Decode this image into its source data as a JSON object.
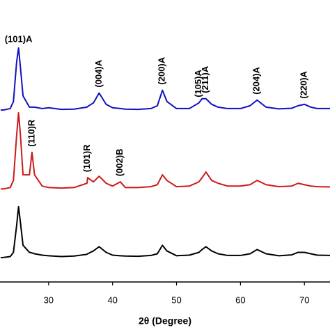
{
  "chart_data": {
    "type": "line",
    "x_label": "2θ (Degree)",
    "x": [
      22.5,
      23,
      24,
      24.5,
      25,
      25.3,
      25.6,
      26,
      27,
      27.4,
      27.8,
      29,
      30,
      32,
      34,
      36,
      36.1,
      37,
      37.9,
      39,
      40,
      41.2,
      42,
      44,
      46,
      47,
      47.8,
      48.5,
      50,
      52,
      53.5,
      54,
      54.6,
      55.5,
      56.5,
      58,
      60,
      61.5,
      62.6,
      64,
      66,
      68,
      69,
      70,
      71,
      72,
      74
    ],
    "xlim": [
      22.4,
      74
    ],
    "xticks": [
      30,
      40,
      50,
      60,
      70
    ],
    "ylim": [
      0,
      100
    ],
    "series": [
      {
        "color": "#1010c0",
        "values": [
          61,
          61,
          61.5,
          64,
          78,
          83,
          76,
          66,
          62,
          62,
          62,
          61.5,
          61.8,
          61.2,
          61.3,
          62,
          62.2,
          63.5,
          67,
          63,
          61.8,
          61.5,
          61.3,
          61.2,
          61.5,
          62.5,
          68,
          64,
          61.5,
          61.5,
          63.5,
          65,
          65,
          63,
          62,
          61.5,
          61.5,
          62.5,
          64.5,
          62,
          61.4,
          61.6,
          62.5,
          63,
          62,
          61.5,
          61.5
        ],
        "annotations": [
          {
            "text": "(101)A",
            "x": 25.3
          },
          {
            "text": "(004)A",
            "x": 37.9
          },
          {
            "text": "(200)A",
            "x": 47.8
          },
          {
            "text": "(105)A",
            "x": 53.5
          },
          {
            "text": "(211)A",
            "x": 54.6
          },
          {
            "text": "(204)A",
            "x": 62.6
          },
          {
            "text": "(220)A",
            "x": 70
          }
        ]
      },
      {
        "color": "#cc1a1a",
        "values": [
          33,
          33,
          33.5,
          36,
          52,
          60,
          52,
          38,
          38,
          46,
          38,
          34,
          33.5,
          33.3,
          33.5,
          35,
          37,
          35.5,
          37.5,
          35,
          34,
          35.5,
          33.5,
          33.5,
          33.8,
          34.5,
          38,
          36,
          33.8,
          34,
          35.5,
          37,
          39,
          36,
          35,
          34,
          34,
          34.5,
          36,
          34.5,
          33.8,
          34,
          35,
          34.5,
          34,
          33.8,
          33.7
        ],
        "annotations": [
          {
            "text": "(110)R",
            "x": 27.4
          },
          {
            "text": "(101)R",
            "x": 36.1
          },
          {
            "text": "(002)B",
            "x": 41.2
          }
        ]
      },
      {
        "color": "#000000",
        "values": [
          8.6,
          8.7,
          9,
          10.5,
          20,
          26.7,
          21,
          13,
          10.5,
          10.3,
          10,
          9.5,
          9.3,
          9,
          9.2,
          9.8,
          10,
          11,
          12.5,
          10.5,
          9.5,
          9.3,
          9.2,
          9.1,
          9.4,
          10,
          13,
          11,
          9.3,
          9.5,
          10.5,
          11.5,
          12.5,
          11,
          10,
          9.4,
          9.4,
          10,
          11.5,
          10,
          9.3,
          9.6,
          10.5,
          10.5,
          10,
          9.5,
          9.4
        ],
        "annotations": []
      }
    ]
  }
}
